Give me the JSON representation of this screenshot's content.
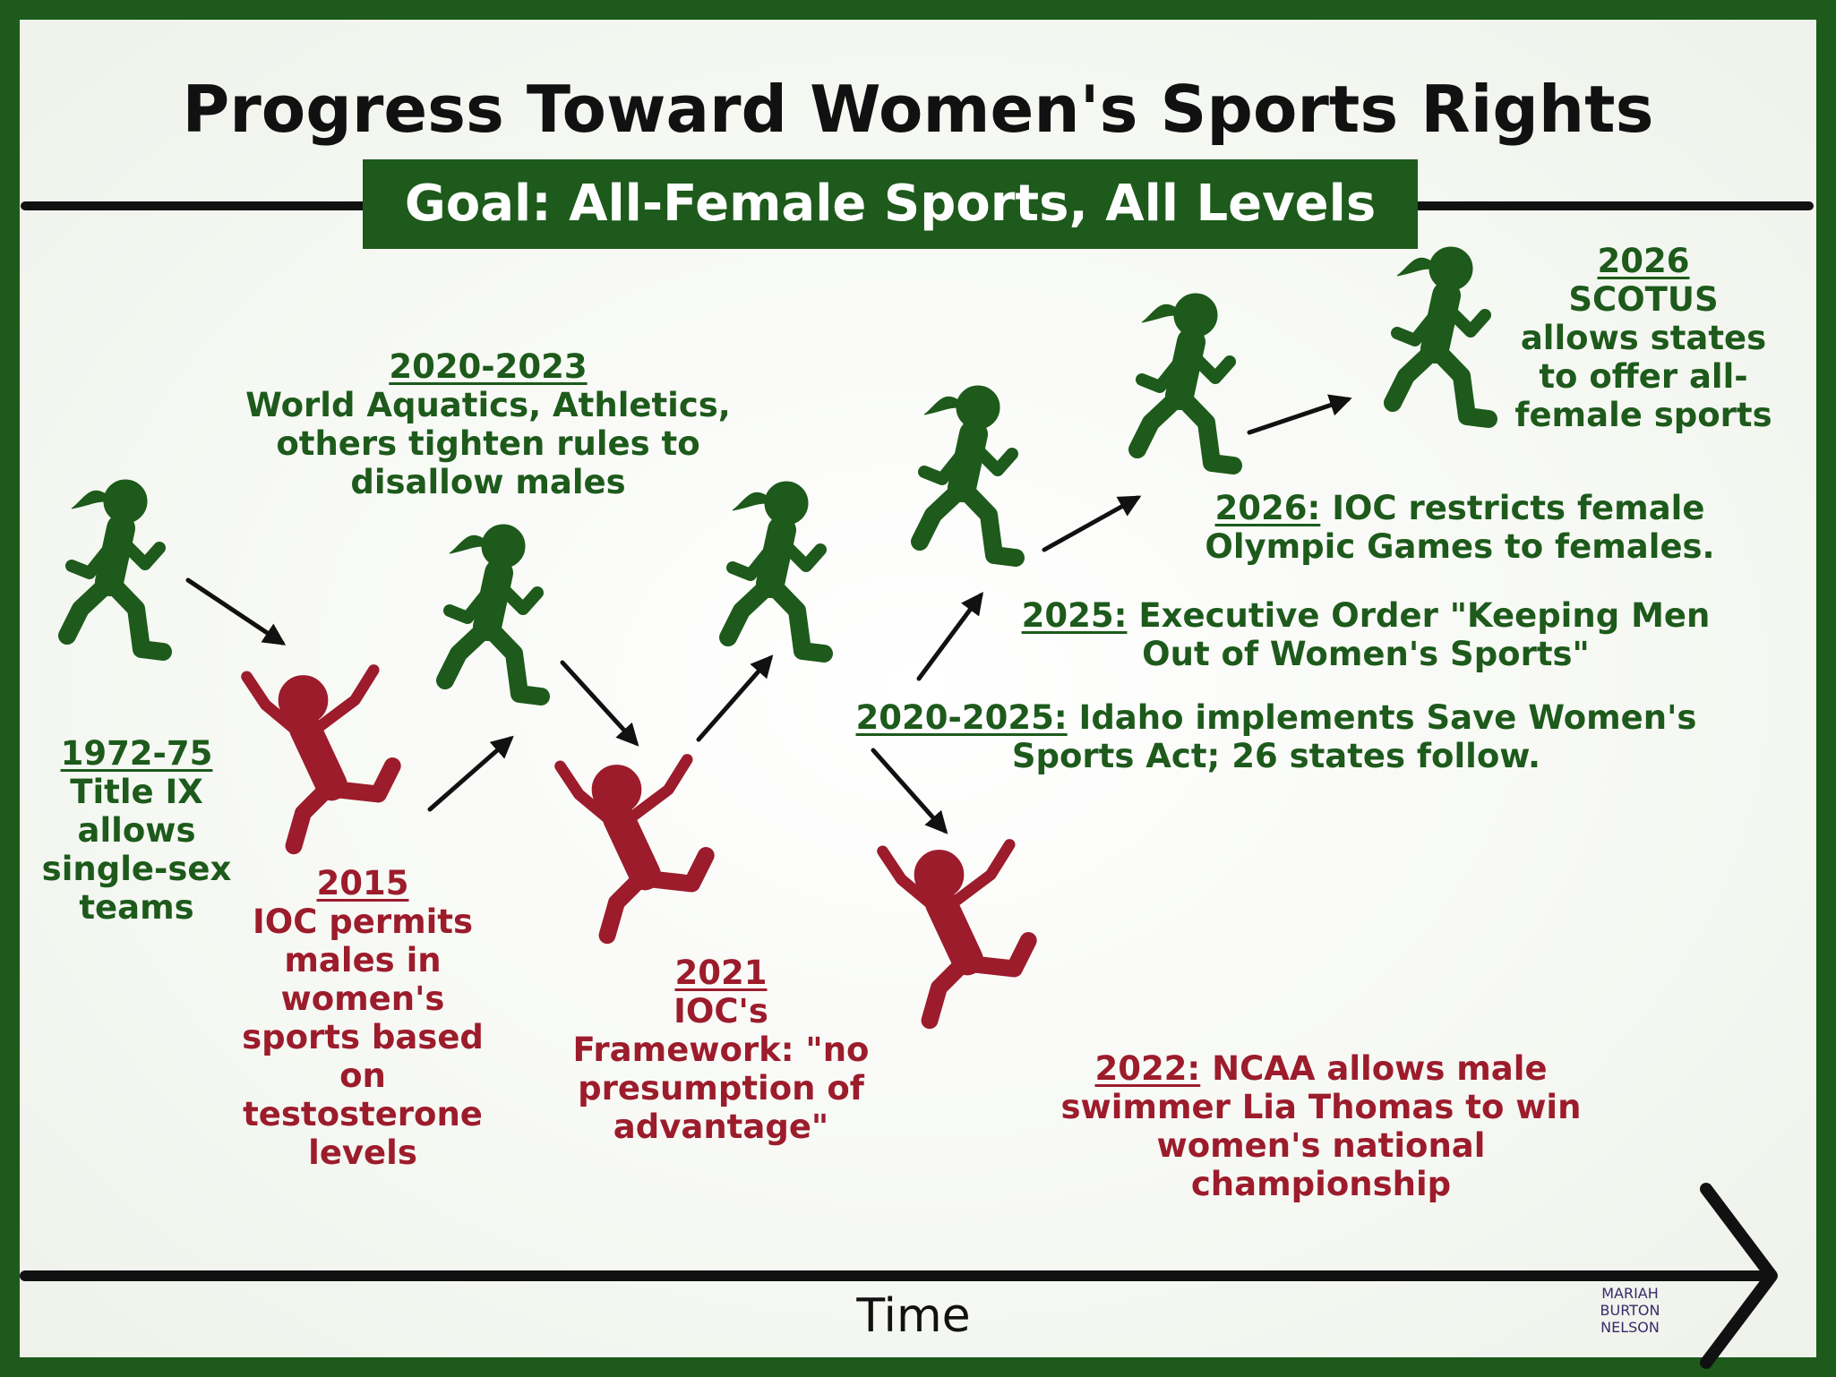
{
  "title": "Progress Toward Women's Sports Rights",
  "goal": "Goal: All-Female Sports, All Levels",
  "events": [
    {
      "year": "1972-75",
      "text": "Title IX allows single-sex teams"
    },
    {
      "year": "2020-2023",
      "text": "World Aquatics, Athletics, others tighten rules to disallow males"
    },
    {
      "year": "2015",
      "text": "IOC permits males in women's sports based on testosterone levels"
    },
    {
      "year": "2021",
      "text": "IOC's Framework: \"no presumption of advantage\""
    },
    {
      "year": "2020-2025:",
      "text": "Idaho implements Save Women's Sports Act; 26 states follow."
    },
    {
      "year": "2025:",
      "text": "Executive Order \"Keeping Men Out of Women's Sports\""
    },
    {
      "year": "2026:",
      "text": "IOC restricts female Olympic Games to females."
    },
    {
      "year": "2026",
      "text": "SCOTUS allows states to offer all-female sports"
    },
    {
      "year": "2022:",
      "text": "NCAA allows male swimmer Lia Thomas to win women's national championship"
    }
  ],
  "axis_label": "Time",
  "credit": [
    "MARIAH",
    "BURTON",
    "NELSON"
  ]
}
